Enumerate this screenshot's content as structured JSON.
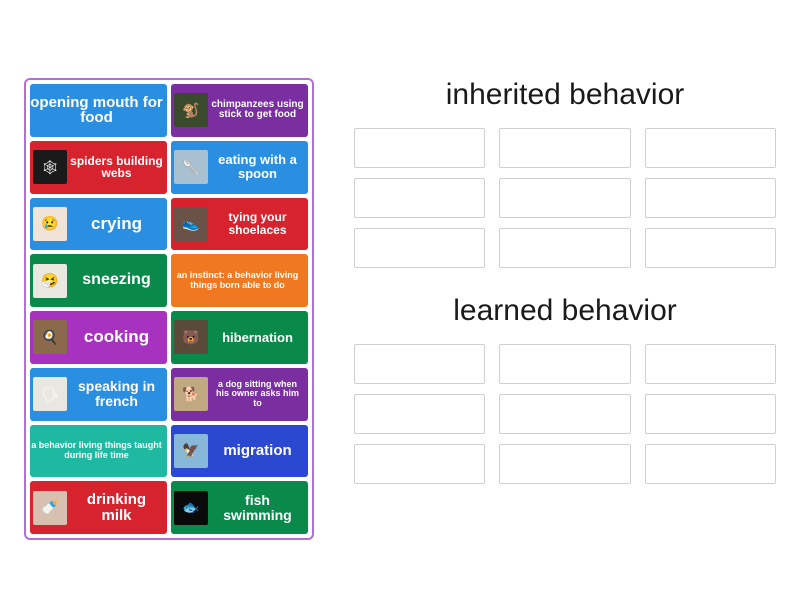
{
  "tiles": [
    {
      "label": "opening mouth for food",
      "color": "#2a8fe0",
      "thumb_bg": "",
      "thumb_icon": "",
      "font_size": 15
    },
    {
      "label": "chimpanzees using stick to get food",
      "color": "#7a2ea0",
      "thumb_bg": "#3a4a2c",
      "thumb_icon": "🐒",
      "font_size": 10
    },
    {
      "label": "spiders building webs",
      "color": "#d6232d",
      "thumb_bg": "#1a1a1a",
      "thumb_icon": "🕸",
      "font_size": 12
    },
    {
      "label": "eating with a spoon",
      "color": "#2a8fe0",
      "thumb_bg": "#a8c0d0",
      "thumb_icon": "🥄",
      "font_size": 13
    },
    {
      "label": "crying",
      "color": "#2a8fe0",
      "thumb_bg": "#f0e4d8",
      "thumb_icon": "😢",
      "font_size": 17
    },
    {
      "label": "tying your shoelaces",
      "color": "#d6232d",
      "thumb_bg": "#6a5248",
      "thumb_icon": "👟",
      "font_size": 12
    },
    {
      "label": "sneezing",
      "color": "#0a8a4a",
      "thumb_bg": "#e8e8e0",
      "thumb_icon": "🤧",
      "font_size": 16
    },
    {
      "label": "an instinct: a behavior living things born able to do",
      "color": "#f07820",
      "thumb_bg": "",
      "thumb_icon": "",
      "font_size": 9
    },
    {
      "label": "cooking",
      "color": "#a832c0",
      "thumb_bg": "#8a6a4a",
      "thumb_icon": "🍳",
      "font_size": 17
    },
    {
      "label": "hibernation",
      "color": "#0a8a4a",
      "thumb_bg": "#5a4a3a",
      "thumb_icon": "🐻",
      "font_size": 13
    },
    {
      "label": "speaking in french",
      "color": "#2a8fe0",
      "thumb_bg": "#e8e8e0",
      "thumb_icon": "🗣",
      "font_size": 14
    },
    {
      "label": "a dog sitting when his owner asks him to",
      "color": "#7a2ea0",
      "thumb_bg": "#c0a880",
      "thumb_icon": "🐕",
      "font_size": 9
    },
    {
      "label": "a behavior living things taught during life time",
      "color": "#1fb8a0",
      "thumb_bg": "",
      "thumb_icon": "",
      "font_size": 9
    },
    {
      "label": "migration",
      "color": "#2a48d0",
      "thumb_bg": "#88b8d8",
      "thumb_icon": "🦅",
      "font_size": 15
    },
    {
      "label": "drinking milk",
      "color": "#d6232d",
      "thumb_bg": "#d8c0b0",
      "thumb_icon": "🍼",
      "font_size": 15
    },
    {
      "label": "fish swimming",
      "color": "#0a8a4a",
      "thumb_bg": "#0a0a0a",
      "thumb_icon": "🐟",
      "font_size": 14
    }
  ],
  "categories": [
    {
      "title": "inherited behavior",
      "slots": 9
    },
    {
      "title": "learned behavior",
      "slots": 9
    }
  ],
  "panel_border_color": "#b36fd6",
  "slot_border_color": "#d0d0d0",
  "background_color": "#ffffff"
}
